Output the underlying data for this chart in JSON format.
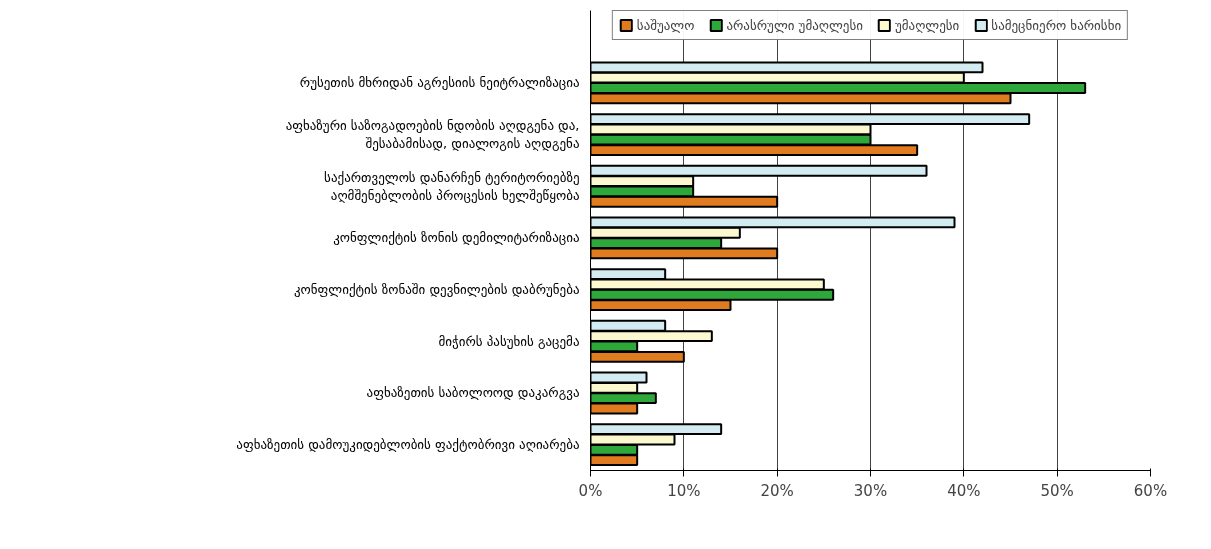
{
  "chart_data": {
    "type": "bar",
    "orientation": "horizontal",
    "categories": [
      "რუსეთის მხრიდან აგრესიის ნეიტრალიზაცია",
      "აფხაზური საზოგადოების ნდობის აღდგენა და,\nშესაბამისად, დიალოგის აღდგენა",
      "საქართველოს დანარჩენ ტერიტორიებზე\nაღმშენებლობის პროცესის ხელშეწყობა",
      "კონფლიქტის ზონის დემილიტარიზაცია",
      "კონფლიქტის ზონაში დევნილების დაბრუნება",
      "მიჭირს პასუხის გაცემა",
      "აფხაზეთის საბოლოოდ დაკარგვა",
      "აფხაზეთის დამოუკიდებლობის ფაქტობრივი აღიარება"
    ],
    "series": [
      {
        "name": "საშუალო",
        "color": "#e07b1f",
        "values": [
          45,
          35,
          20,
          20,
          15,
          10,
          5,
          5
        ]
      },
      {
        "name": "არასრული უმაღლესი",
        "color": "#2ea83a",
        "values": [
          53,
          30,
          11,
          14,
          26,
          5,
          7,
          5
        ]
      },
      {
        "name": "უმაღლესი",
        "color": "#fcf8d0",
        "values": [
          40,
          30,
          11,
          16,
          25,
          13,
          5,
          9
        ]
      },
      {
        "name": "სამეცნიერო ხარისხი",
        "color": "#d3ecf2",
        "values": [
          42,
          47,
          36,
          39,
          8,
          8,
          6,
          14
        ]
      }
    ],
    "xlim": [
      0,
      60
    ],
    "xticks": [
      {
        "value": 0,
        "label": "0%"
      },
      {
        "value": 10,
        "label": "10%"
      },
      {
        "value": 20,
        "label": "20%"
      },
      {
        "value": 30,
        "label": "30%"
      },
      {
        "value": 40,
        "label": "40%"
      },
      {
        "value": 50,
        "label": "50%"
      },
      {
        "value": 60,
        "label": "60%"
      }
    ],
    "grid": "x",
    "legend": "top"
  }
}
